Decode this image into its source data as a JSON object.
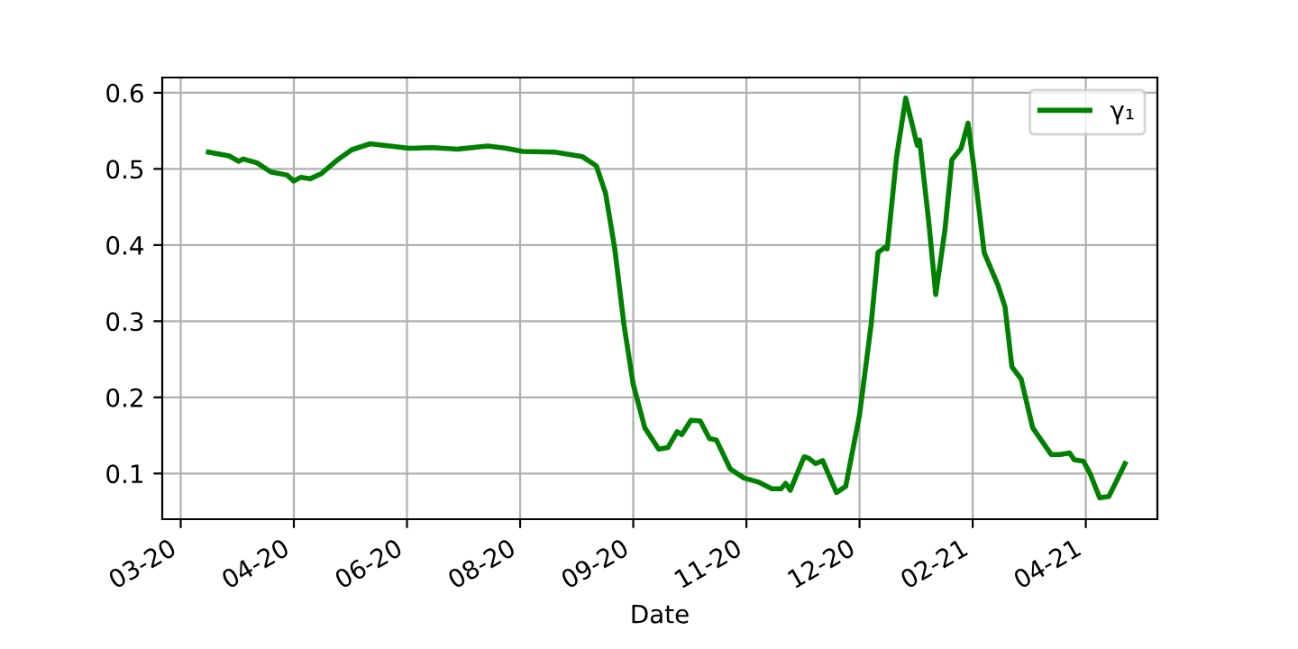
{
  "chart_data": {
    "type": "line",
    "xlabel": "Date",
    "xlim": [
      "2020-02-29",
      "2021-05-05"
    ],
    "ylim": [
      0.04,
      0.62
    ],
    "xticks": [
      {
        "value": "2020-03-08",
        "label": "03-20"
      },
      {
        "value": "2020-04-26",
        "label": "04-20"
      },
      {
        "value": "2020-06-14",
        "label": "06-20"
      },
      {
        "value": "2020-08-02",
        "label": "08-20"
      },
      {
        "value": "2020-09-20",
        "label": "09-20"
      },
      {
        "value": "2020-11-08",
        "label": "11-20"
      },
      {
        "value": "2020-12-27",
        "label": "12-20"
      },
      {
        "value": "2021-02-14",
        "label": "02-21"
      },
      {
        "value": "2021-04-04",
        "label": "04-21"
      }
    ],
    "yticks": [
      {
        "value": 0.1,
        "label": "0.1"
      },
      {
        "value": 0.2,
        "label": "0.2"
      },
      {
        "value": 0.3,
        "label": "0.3"
      },
      {
        "value": 0.4,
        "label": "0.4"
      },
      {
        "value": 0.5,
        "label": "0.5"
      },
      {
        "value": 0.6,
        "label": "0.6"
      }
    ],
    "grid": true,
    "legend": "top right",
    "marker": "none",
    "line_style": "solid",
    "series": [
      {
        "name": "γ₁",
        "color": "#008000",
        "x": [
          "2020-03-20",
          "2020-03-29",
          "2020-04-02",
          "2020-04-04",
          "2020-04-10",
          "2020-04-16",
          "2020-04-23",
          "2020-04-26",
          "2020-04-29",
          "2020-05-03",
          "2020-05-08",
          "2020-05-15",
          "2020-05-21",
          "2020-05-29",
          "2020-06-04",
          "2020-06-15",
          "2020-06-25",
          "2020-07-06",
          "2020-07-19",
          "2020-07-27",
          "2020-08-03",
          "2020-08-17",
          "2020-08-29",
          "2020-09-04",
          "2020-09-08",
          "2020-09-12",
          "2020-09-16",
          "2020-09-20",
          "2020-09-25",
          "2020-10-01",
          "2020-10-05",
          "2020-10-09",
          "2020-10-11",
          "2020-10-15",
          "2020-10-19",
          "2020-10-23",
          "2020-10-26",
          "2020-11-01",
          "2020-11-07",
          "2020-11-13",
          "2020-11-19",
          "2020-11-23",
          "2020-11-25",
          "2020-11-27",
          "2020-12-03",
          "2020-12-05",
          "2020-12-08",
          "2020-12-11",
          "2020-12-17",
          "2020-12-21",
          "2020-12-27",
          "2021-01-01",
          "2021-01-04",
          "2021-01-07",
          "2021-01-08",
          "2021-01-12",
          "2021-01-16",
          "2021-01-21",
          "2021-01-22",
          "2021-01-26",
          "2021-01-29",
          "2021-02-02",
          "2021-02-05",
          "2021-02-09",
          "2021-02-12",
          "2021-02-15",
          "2021-02-19",
          "2021-02-25",
          "2021-02-28",
          "2021-03-03",
          "2021-03-07",
          "2021-03-12",
          "2021-03-20",
          "2021-03-24",
          "2021-03-28",
          "2021-03-30",
          "2021-04-03",
          "2021-04-06",
          "2021-04-10",
          "2021-04-14",
          "2021-04-21"
        ],
        "values": [
          0.522,
          0.517,
          0.51,
          0.513,
          0.508,
          0.496,
          0.492,
          0.484,
          0.489,
          0.487,
          0.494,
          0.512,
          0.525,
          0.533,
          0.531,
          0.527,
          0.528,
          0.526,
          0.53,
          0.527,
          0.523,
          0.522,
          0.516,
          0.504,
          0.468,
          0.395,
          0.295,
          0.217,
          0.16,
          0.132,
          0.134,
          0.155,
          0.151,
          0.17,
          0.169,
          0.146,
          0.144,
          0.106,
          0.094,
          0.089,
          0.08,
          0.08,
          0.087,
          0.078,
          0.122,
          0.12,
          0.113,
          0.117,
          0.075,
          0.083,
          0.177,
          0.295,
          0.39,
          0.397,
          0.395,
          0.515,
          0.593,
          0.531,
          0.538,
          0.43,
          0.335,
          0.42,
          0.512,
          0.527,
          0.56,
          0.491,
          0.39,
          0.347,
          0.319,
          0.24,
          0.224,
          0.16,
          0.125,
          0.125,
          0.127,
          0.118,
          0.116,
          0.099,
          0.068,
          0.07,
          0.113
        ]
      }
    ]
  }
}
